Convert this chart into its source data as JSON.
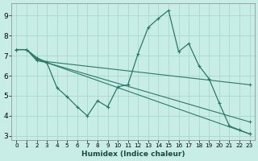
{
  "xlabel": "Humidex (Indice chaleur)",
  "background_color": "#c8ece6",
  "grid_color": "#a8d8d0",
  "line_color": "#2a7a68",
  "xlim": [
    -0.5,
    23.5
  ],
  "ylim": [
    2.8,
    9.6
  ],
  "yticks": [
    3,
    4,
    5,
    6,
    7,
    8,
    9
  ],
  "xticks": [
    0,
    1,
    2,
    3,
    4,
    5,
    6,
    7,
    8,
    9,
    10,
    11,
    12,
    13,
    14,
    15,
    16,
    17,
    18,
    19,
    20,
    21,
    22,
    23
  ],
  "series": [
    {
      "x": [
        0,
        1,
        2,
        3,
        4,
        5,
        6,
        7,
        8,
        9,
        10,
        11,
        12,
        13,
        14,
        15,
        16,
        17,
        18,
        19,
        20,
        21,
        22,
        23
      ],
      "y": [
        7.3,
        7.3,
        6.9,
        6.65,
        5.4,
        4.95,
        4.45,
        4.0,
        4.75,
        4.45,
        5.45,
        5.55,
        7.1,
        8.4,
        8.85,
        9.25,
        7.2,
        7.6,
        6.5,
        5.85,
        4.65,
        3.5,
        3.3,
        3.1
      ]
    },
    {
      "x": [
        0,
        1,
        2,
        3,
        23
      ],
      "y": [
        7.3,
        7.3,
        6.85,
        6.7,
        5.55
      ]
    },
    {
      "x": [
        0,
        1,
        2,
        3,
        23
      ],
      "y": [
        7.3,
        7.3,
        6.8,
        6.65,
        3.7
      ]
    },
    {
      "x": [
        0,
        1,
        2,
        3,
        23
      ],
      "y": [
        7.3,
        7.3,
        6.75,
        6.65,
        3.1
      ]
    }
  ]
}
